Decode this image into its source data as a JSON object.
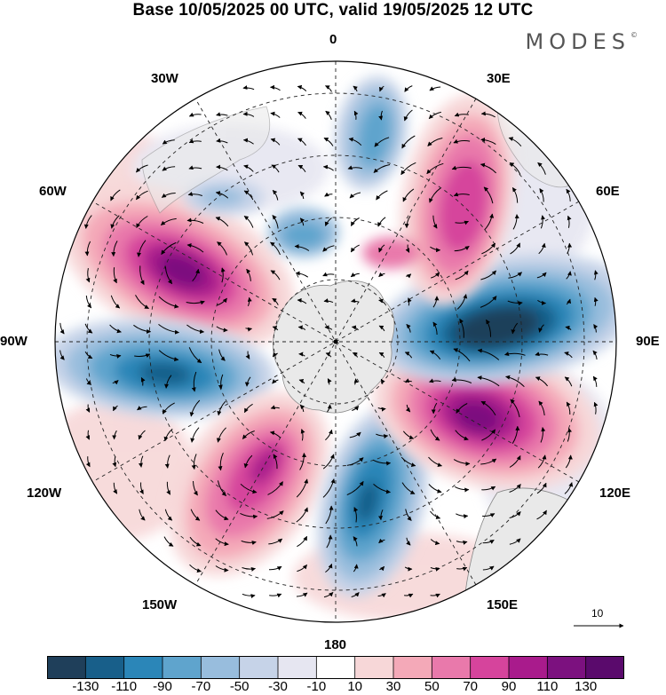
{
  "title": "Base 10/05/2025 00 UTC, valid 19/05/2025 12 UTC",
  "brand": "MODES",
  "brand_mark": "©",
  "longitude_labels": {
    "lon_0": "0",
    "lon_30e": "30E",
    "lon_60e": "60E",
    "lon_90e": "90E",
    "lon_120e": "120E",
    "lon_150e": "150E",
    "lon_180": "180",
    "lon_150w": "150W",
    "lon_120w": "120W",
    "lon_90w": "90W",
    "lon_60w": "60W",
    "lon_30w": "30W"
  },
  "vector_scale_label": "10",
  "colorbar": {
    "ticks": [
      "-130",
      "-110",
      "-90",
      "-70",
      "-50",
      "-30",
      "-10",
      "10",
      "30",
      "50",
      "70",
      "90",
      "110",
      "130"
    ],
    "colors": [
      "#1f3f5a",
      "#185f8a",
      "#2b86b8",
      "#5fa4cd",
      "#98bddd",
      "#c6d3e8",
      "#e6e6f1",
      "#ffffff",
      "#f7d7d8",
      "#f4a9b8",
      "#e979ab",
      "#d6449c",
      "#a91b8c",
      "#7c117f",
      "#5a0a6c"
    ]
  },
  "field_anomalies": [
    {
      "name": "anomaly-high-south-atlantic",
      "sign": "positive",
      "peak": "110"
    },
    {
      "name": "anomaly-low-bellingshausen",
      "sign": "negative",
      "peak": "-90"
    },
    {
      "name": "anomaly-high-south-pacific",
      "sign": "positive",
      "peak": "90"
    },
    {
      "name": "anomaly-low-ross-sea",
      "sign": "negative",
      "peak": "-90"
    },
    {
      "name": "anomaly-high-south-of-australia",
      "sign": "positive",
      "peak": "110"
    },
    {
      "name": "anomaly-low-southern-indian",
      "sign": "negative",
      "peak": "-130"
    },
    {
      "name": "anomaly-high-south-africa",
      "sign": "positive",
      "peak": "90"
    },
    {
      "name": "anomaly-low-weddell",
      "sign": "negative",
      "peak": "-70"
    }
  ]
}
